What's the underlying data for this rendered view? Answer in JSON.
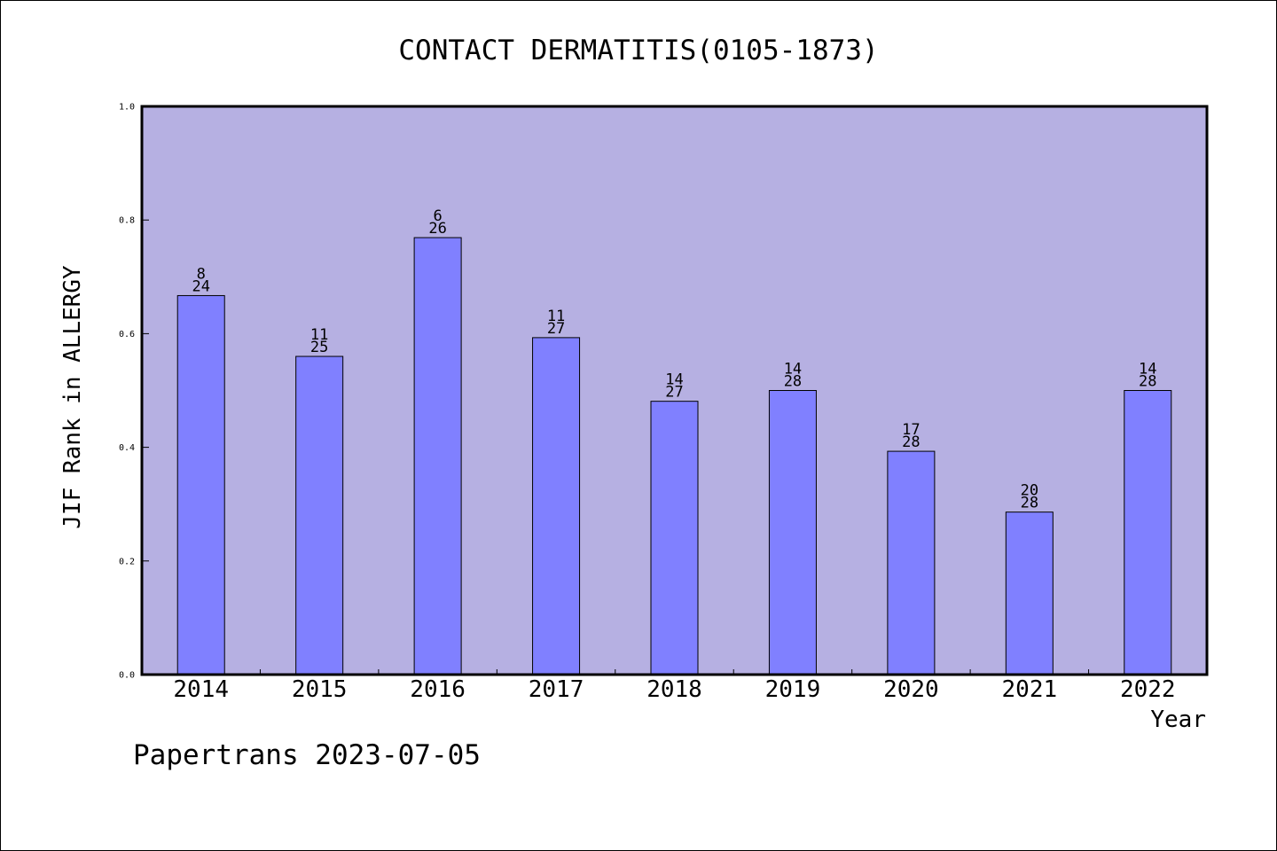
{
  "footer_text": "Papertrans 2023-07-05",
  "colors": {
    "plot_background": "#b6b0e2",
    "bar_fill": "#8080ff",
    "bar_stroke": "#000000",
    "frame": "#000000"
  },
  "chart_data": {
    "type": "bar",
    "title": "CONTACT DERMATITIS(0105-1873)",
    "xlabel": "Year",
    "ylabel": "JIF Rank in ALLERGY",
    "ylim": [
      0,
      1.0
    ],
    "yticks": [
      "0.0",
      "0.2",
      "0.4",
      "0.6",
      "0.8",
      "1.0"
    ],
    "grid": false,
    "legend": "none",
    "categories": [
      "2014",
      "2015",
      "2016",
      "2017",
      "2018",
      "2019",
      "2020",
      "2021",
      "2022"
    ],
    "values": [
      0.667,
      0.56,
      0.769,
      0.593,
      0.481,
      0.5,
      0.393,
      0.286,
      0.5
    ],
    "labels_top": [
      "8",
      "11",
      "6",
      "11",
      "14",
      "14",
      "17",
      "20",
      "14"
    ],
    "labels_bottom": [
      "24",
      "25",
      "26",
      "27",
      "27",
      "28",
      "28",
      "28",
      "28"
    ]
  }
}
